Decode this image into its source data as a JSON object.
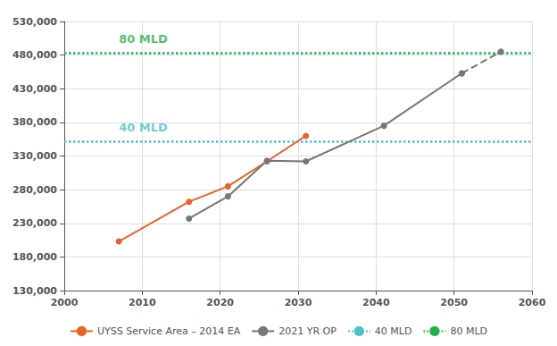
{
  "chart_data": {
    "type": "line",
    "xlim": [
      2000,
      2060
    ],
    "xticks": [
      2000,
      2010,
      2020,
      2030,
      2040,
      2050,
      2060
    ],
    "ylim": [
      130000,
      530000
    ],
    "yticks": [
      {
        "value": 130000,
        "label": "130,000"
      },
      {
        "value": 180000,
        "label": "180,000"
      },
      {
        "value": 230000,
        "label": "230,000"
      },
      {
        "value": 280000,
        "label": "280,000"
      },
      {
        "value": 330000,
        "label": "330,000"
      },
      {
        "value": 380000,
        "label": "380,000"
      },
      {
        "value": 430000,
        "label": "430,000"
      },
      {
        "value": 480000,
        "label": "480,000"
      },
      {
        "value": 530000,
        "label": "530,000"
      }
    ],
    "grid": true,
    "legend": "bottom",
    "series": [
      {
        "name": "UYSS Service Area – 2014 EA",
        "color": "#E8622A",
        "marker": "circle",
        "line_style": "solid",
        "x": [
          2007,
          2016,
          2021,
          2026,
          2031
        ],
        "values": [
          203000,
          262000,
          285000,
          322000,
          360000
        ]
      },
      {
        "name": "2021 YR OP",
        "color": "#777777",
        "marker": "circle",
        "line_style": "solid",
        "x": [
          2016,
          2021,
          2026,
          2031,
          2041,
          2051
        ],
        "values": [
          237000,
          270000,
          323000,
          322000,
          375000,
          453000
        ]
      },
      {
        "color": "#777777",
        "marker": "circle",
        "line_style": "dashed",
        "x": [
          2051,
          2056
        ],
        "values": [
          453000,
          485000
        ]
      }
    ],
    "reference_lines": [
      {
        "name": "40 MLD",
        "value": 352000,
        "color": "#4BBFCA",
        "line_style": "dotted"
      },
      {
        "name": "80 MLD",
        "value": 483000,
        "color": "#22B04B",
        "line_style": "dotted"
      }
    ],
    "annotations": [
      {
        "text": "80 MLD",
        "x": 2007,
        "y": 495000,
        "color": "#22B04B"
      },
      {
        "text": "40 MLD",
        "x": 2007,
        "y": 364000,
        "color": "#4BBFCA"
      }
    ]
  }
}
